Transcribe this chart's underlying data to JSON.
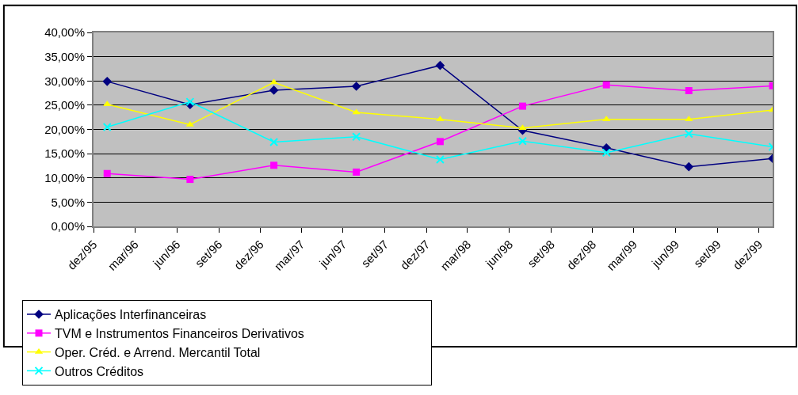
{
  "chart_data": {
    "type": "line",
    "x": [
      "1995-12-31",
      "1996-06-30",
      "1996-12-31",
      "1997-06-30",
      "1997-12-31",
      "1998-06-30",
      "1998-12-31",
      "1999-06-30",
      "1999-12-31"
    ],
    "series": [
      {
        "name": "Aplicações Interfinanceiras",
        "color": "#000080",
        "marker": "diamond",
        "values": [
          29.9,
          25.1,
          28.1,
          28.9,
          33.2,
          19.8,
          16.2,
          12.3,
          14.0
        ]
      },
      {
        "name": "TVM e Instrumentos Financeiros Derivativos",
        "color": "#ff00ff",
        "marker": "square",
        "values": [
          10.9,
          9.7,
          12.6,
          11.2,
          17.5,
          24.8,
          29.2,
          28.0,
          29.0
        ]
      },
      {
        "name": "Oper. Créd. e Arrend. Mercantil Total",
        "color": "#ffff00",
        "marker": "triangle",
        "values": [
          25.2,
          21.0,
          29.7,
          23.5,
          22.1,
          20.3,
          22.1,
          22.1,
          24.0
        ]
      },
      {
        "name": "Outros Créditos",
        "color": "#00ffff",
        "marker": "cross",
        "values": [
          20.5,
          25.7,
          17.4,
          18.5,
          13.8,
          17.6,
          15.2,
          19.1,
          16.4
        ]
      }
    ],
    "xlim": [
      "1995-12-01",
      "1999-12-31"
    ],
    "xticks": [
      {
        "value": "1995-12-01",
        "label": "dez/95"
      },
      {
        "value": "1996-03-01",
        "label": "mar/96"
      },
      {
        "value": "1996-06-01",
        "label": "jun/96"
      },
      {
        "value": "1996-09-01",
        "label": "set/96"
      },
      {
        "value": "1996-12-01",
        "label": "dez/96"
      },
      {
        "value": "1997-03-01",
        "label": "mar/97"
      },
      {
        "value": "1997-06-01",
        "label": "jun/97"
      },
      {
        "value": "1997-09-01",
        "label": "set/97"
      },
      {
        "value": "1997-12-01",
        "label": "dez/97"
      },
      {
        "value": "1998-03-01",
        "label": "mar/98"
      },
      {
        "value": "1998-06-01",
        "label": "jun/98"
      },
      {
        "value": "1998-09-01",
        "label": "set/98"
      },
      {
        "value": "1998-12-01",
        "label": "dez/98"
      },
      {
        "value": "1999-03-01",
        "label": "mar/99"
      },
      {
        "value": "1999-06-01",
        "label": "jun/99"
      },
      {
        "value": "1999-09-01",
        "label": "set/99"
      },
      {
        "value": "1999-12-01",
        "label": "dez/99"
      }
    ],
    "ylim": [
      0,
      40
    ],
    "yticks": [
      {
        "value": 0,
        "label": "0,00%"
      },
      {
        "value": 5,
        "label": "5,00%"
      },
      {
        "value": 10,
        "label": "10,00%"
      },
      {
        "value": 15,
        "label": "15,00%"
      },
      {
        "value": 20,
        "label": "20,00%"
      },
      {
        "value": 25,
        "label": "25,00%"
      },
      {
        "value": 30,
        "label": "30,00%"
      },
      {
        "value": 35,
        "label": "35,00%"
      },
      {
        "value": 40,
        "label": "40,00%"
      }
    ],
    "grid": "y",
    "legend": "bottom",
    "line_style": "solid"
  }
}
